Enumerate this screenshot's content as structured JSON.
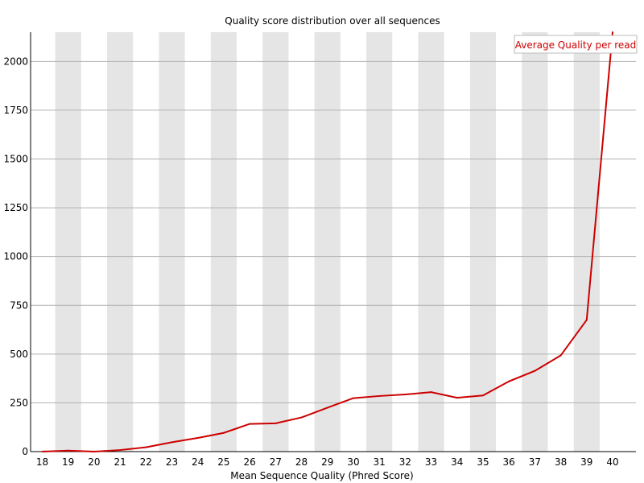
{
  "chart_data": {
    "type": "line",
    "title": "Quality score distribution over all sequences",
    "xlabel": "Mean Sequence Quality (Phred Score)",
    "ylabel": "",
    "x": [
      18,
      19,
      20,
      21,
      22,
      23,
      24,
      25,
      26,
      27,
      28,
      29,
      30,
      31,
      32,
      33,
      34,
      35,
      36,
      37,
      38,
      39,
      40
    ],
    "series": [
      {
        "name": "Average Quality per read",
        "color": "#cc0000",
        "values": [
          0,
          5,
          0,
          8,
          22,
          48,
          70,
          96,
          142,
          145,
          175,
          225,
          274,
          285,
          293,
          305,
          276,
          288,
          360,
          414,
          493,
          675,
          2150
        ]
      }
    ],
    "yticks": [
      0,
      250,
      500,
      750,
      1000,
      1250,
      1500,
      1750,
      2000
    ],
    "ylim": [
      0,
      2150
    ],
    "xlim": [
      17.55,
      40.9
    ],
    "grid": true,
    "legend": "top-right"
  }
}
